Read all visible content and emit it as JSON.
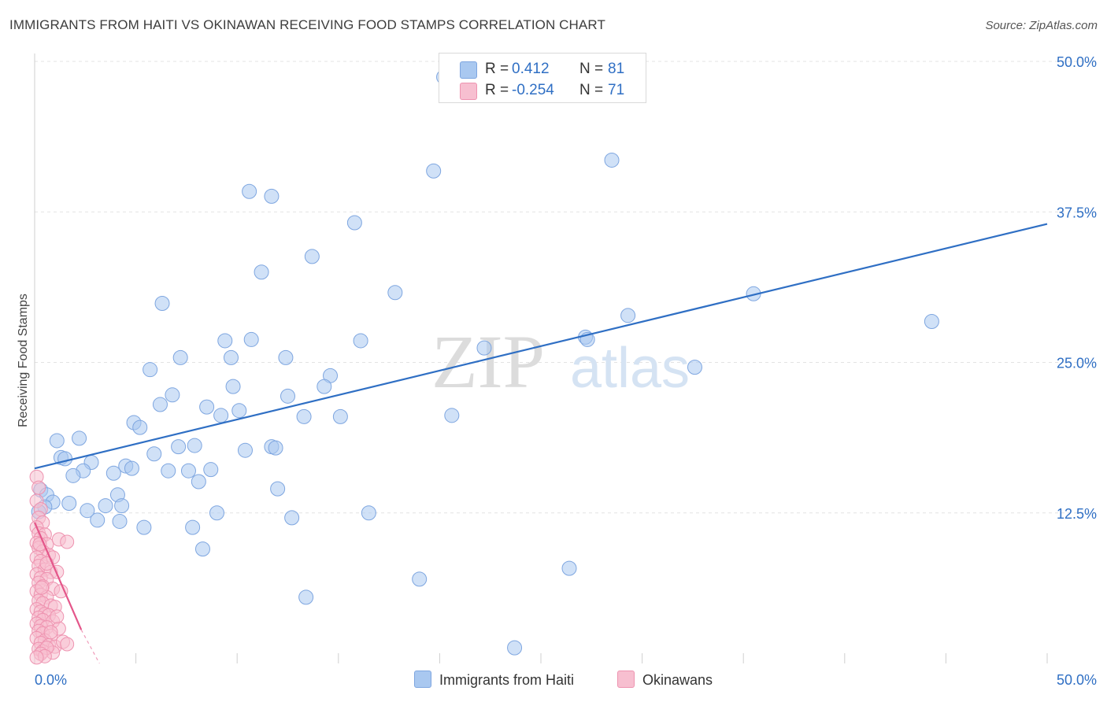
{
  "title": "IMMIGRANTS FROM HAITI VS OKINAWAN RECEIVING FOOD STAMPS CORRELATION CHART",
  "source": "Source: ZipAtlas.com",
  "watermark": {
    "zip": "ZIP",
    "atlas": "atlas"
  },
  "stats": [
    {
      "r_label": "R =",
      "r_value": "0.412",
      "n_label": "N =",
      "n_value": "81",
      "color": "#a9c8f0",
      "border": "#7ea6e0"
    },
    {
      "r_label": "R =",
      "r_value": "-0.254",
      "n_label": "N =",
      "n_value": "71",
      "color": "#f7bfd0",
      "border": "#ee93b0"
    }
  ],
  "legend": [
    {
      "label": "Immigrants from Haiti",
      "color": "#a9c8f0",
      "border": "#7ea6e0"
    },
    {
      "label": "Okinawans",
      "color": "#f7bfd0",
      "border": "#ee93b0"
    }
  ],
  "chart_data": {
    "type": "scatter",
    "xlabel": "",
    "ylabel": "Receiving Food Stamps",
    "xlim": [
      0,
      50
    ],
    "ylim": [
      0,
      50
    ],
    "x_tick_labels": [
      "0.0%",
      "50.0%"
    ],
    "y_ticks": [
      12.5,
      25.0,
      37.5,
      50.0
    ],
    "y_tick_labels": [
      "12.5%",
      "25.0%",
      "37.5%",
      "50.0%"
    ],
    "grid": true,
    "series": [
      {
        "name": "Immigrants from Haiti",
        "color": "#7ea6e0",
        "fill": "#a9c8f0",
        "trend": {
          "x": [
            0,
            50
          ],
          "y": [
            16.2,
            36.5
          ],
          "color": "#2f6fc4"
        },
        "points": [
          [
            20.2,
            48.7
          ],
          [
            28.5,
            41.8
          ],
          [
            10.6,
            39.2
          ],
          [
            11.7,
            38.8
          ],
          [
            19.7,
            40.9
          ],
          [
            15.8,
            36.6
          ],
          [
            13.7,
            33.8
          ],
          [
            11.2,
            32.5
          ],
          [
            17.8,
            30.8
          ],
          [
            6.3,
            29.9
          ],
          [
            35.5,
            30.7
          ],
          [
            29.3,
            28.9
          ],
          [
            44.3,
            28.4
          ],
          [
            27.2,
            27.1
          ],
          [
            27.3,
            26.9
          ],
          [
            9.4,
            26.8
          ],
          [
            10.7,
            26.9
          ],
          [
            16.1,
            26.8
          ],
          [
            22.2,
            26.2
          ],
          [
            7.2,
            25.4
          ],
          [
            9.7,
            25.4
          ],
          [
            12.4,
            25.4
          ],
          [
            5.7,
            24.4
          ],
          [
            14.6,
            23.9
          ],
          [
            32.6,
            24.6
          ],
          [
            9.8,
            23.0
          ],
          [
            14.3,
            23.0
          ],
          [
            6.8,
            22.3
          ],
          [
            12.5,
            22.2
          ],
          [
            6.2,
            21.5
          ],
          [
            8.5,
            21.3
          ],
          [
            10.1,
            21.0
          ],
          [
            9.2,
            20.6
          ],
          [
            13.3,
            20.5
          ],
          [
            15.1,
            20.5
          ],
          [
            20.6,
            20.6
          ],
          [
            4.9,
            20.0
          ],
          [
            5.2,
            19.6
          ],
          [
            1.1,
            18.5
          ],
          [
            2.2,
            18.7
          ],
          [
            7.1,
            18.0
          ],
          [
            7.9,
            18.1
          ],
          [
            11.7,
            18.0
          ],
          [
            11.9,
            17.9
          ],
          [
            10.4,
            17.7
          ],
          [
            1.3,
            17.1
          ],
          [
            1.5,
            17.0
          ],
          [
            5.9,
            17.4
          ],
          [
            2.8,
            16.7
          ],
          [
            4.5,
            16.4
          ],
          [
            4.8,
            16.2
          ],
          [
            2.4,
            16.0
          ],
          [
            1.9,
            15.6
          ],
          [
            3.9,
            15.8
          ],
          [
            6.6,
            16.0
          ],
          [
            7.6,
            16.0
          ],
          [
            8.7,
            16.1
          ],
          [
            8.1,
            15.1
          ],
          [
            0.3,
            14.4
          ],
          [
            0.6,
            14.0
          ],
          [
            4.1,
            14.0
          ],
          [
            12.0,
            14.5
          ],
          [
            0.9,
            13.4
          ],
          [
            1.7,
            13.3
          ],
          [
            3.5,
            13.1
          ],
          [
            4.3,
            13.1
          ],
          [
            2.6,
            12.7
          ],
          [
            9.0,
            12.5
          ],
          [
            12.7,
            12.1
          ],
          [
            16.5,
            12.5
          ],
          [
            3.1,
            11.9
          ],
          [
            4.2,
            11.8
          ],
          [
            5.4,
            11.3
          ],
          [
            7.8,
            11.3
          ],
          [
            8.3,
            9.5
          ],
          [
            19.0,
            7.0
          ],
          [
            26.4,
            7.9
          ],
          [
            13.4,
            5.5
          ],
          [
            23.7,
            1.3
          ],
          [
            0.5,
            13.0
          ],
          [
            0.2,
            12.6
          ]
        ]
      },
      {
        "name": "Okinawans",
        "color": "#ee93b0",
        "fill": "#f7bfd0",
        "trend": {
          "x": [
            0,
            2.3
          ],
          "y": [
            11.7,
            2.8
          ],
          "color": "#e4568a",
          "dash_to": [
            3.2,
            0.0
          ]
        },
        "points": [
          [
            0.1,
            15.5
          ],
          [
            0.2,
            14.6
          ],
          [
            0.1,
            13.5
          ],
          [
            0.3,
            12.8
          ],
          [
            0.2,
            12.1
          ],
          [
            0.4,
            11.7
          ],
          [
            0.1,
            11.3
          ],
          [
            0.2,
            10.8
          ],
          [
            0.5,
            10.7
          ],
          [
            0.3,
            10.4
          ],
          [
            0.1,
            10.0
          ],
          [
            0.6,
            9.9
          ],
          [
            1.2,
            10.3
          ],
          [
            1.6,
            10.1
          ],
          [
            0.2,
            9.6
          ],
          [
            0.4,
            9.3
          ],
          [
            0.7,
            9.0
          ],
          [
            0.1,
            8.8
          ],
          [
            0.3,
            8.5
          ],
          [
            0.9,
            8.8
          ],
          [
            0.2,
            8.1
          ],
          [
            0.5,
            7.8
          ],
          [
            0.8,
            7.6
          ],
          [
            1.1,
            7.6
          ],
          [
            0.1,
            7.4
          ],
          [
            0.3,
            7.1
          ],
          [
            0.6,
            7.0
          ],
          [
            0.2,
            6.7
          ],
          [
            0.4,
            6.4
          ],
          [
            0.9,
            6.2
          ],
          [
            1.3,
            6.0
          ],
          [
            0.1,
            6.0
          ],
          [
            0.3,
            5.7
          ],
          [
            0.6,
            5.5
          ],
          [
            0.2,
            5.2
          ],
          [
            0.4,
            5.0
          ],
          [
            0.8,
            4.8
          ],
          [
            1.0,
            4.7
          ],
          [
            0.1,
            4.5
          ],
          [
            0.3,
            4.3
          ],
          [
            0.5,
            4.1
          ],
          [
            0.7,
            4.0
          ],
          [
            0.2,
            3.8
          ],
          [
            0.4,
            3.6
          ],
          [
            0.9,
            3.5
          ],
          [
            0.1,
            3.3
          ],
          [
            0.3,
            3.1
          ],
          [
            0.6,
            3.0
          ],
          [
            1.2,
            2.9
          ],
          [
            0.2,
            2.7
          ],
          [
            0.4,
            2.5
          ],
          [
            0.8,
            2.3
          ],
          [
            0.1,
            2.1
          ],
          [
            0.5,
            1.9
          ],
          [
            0.3,
            1.7
          ],
          [
            0.7,
            1.5
          ],
          [
            1.0,
            1.4
          ],
          [
            0.2,
            1.2
          ],
          [
            0.4,
            1.0
          ],
          [
            0.9,
            0.9
          ],
          [
            1.4,
            1.8
          ],
          [
            1.6,
            1.6
          ],
          [
            0.6,
            1.3
          ],
          [
            0.3,
            0.8
          ],
          [
            0.5,
            0.6
          ],
          [
            0.1,
            0.5
          ],
          [
            0.8,
            2.6
          ],
          [
            1.1,
            3.9
          ],
          [
            0.6,
            8.3
          ],
          [
            0.35,
            6.3
          ],
          [
            0.25,
            9.9
          ]
        ]
      }
    ]
  }
}
